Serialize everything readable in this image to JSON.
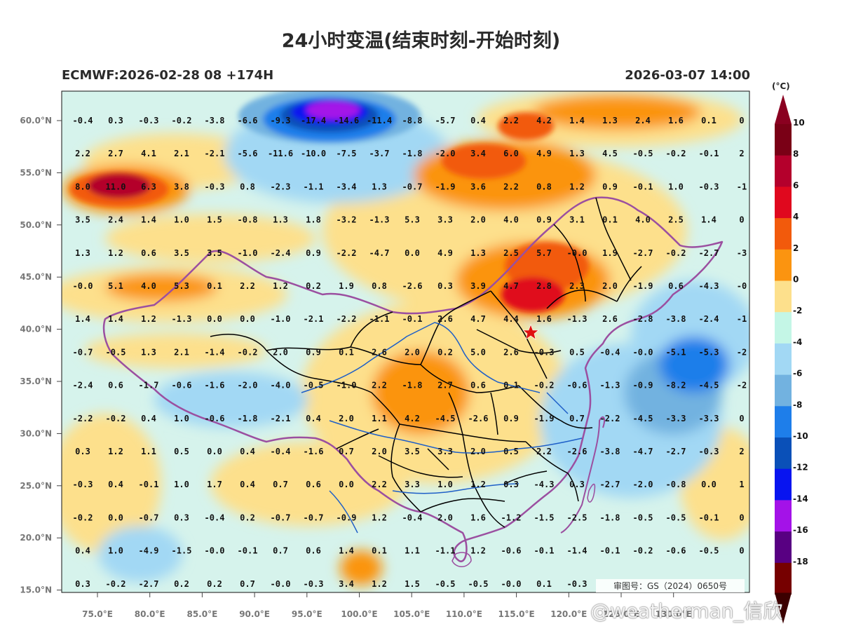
{
  "title": "24小时变温(结束时刻-开始时刻)",
  "model_run": "ECMWF:2026-02-28 08 +174H",
  "valid_time": "2026-03-07 14:00",
  "approval_number": "审图号：GS（2024）0650号",
  "watermark": "@weatherman_信欣",
  "lon_labels": [
    "75.0°E",
    "80.0°E",
    "85.0°E",
    "90.0°E",
    "95.0°E",
    "100.0°E",
    "105.0°E",
    "110.0°E",
    "115.0°E",
    "120.0°E",
    "125.0°E",
    "130.0°E"
  ],
  "lat_labels": [
    "60.0°N",
    "55.0°N",
    "50.0°N",
    "45.0°N",
    "40.0°N",
    "35.0°N",
    "30.0°N",
    "25.0°N",
    "20.0°N",
    "15.0°N"
  ],
  "colorbar": {
    "unit": "(°C)",
    "labels": [
      "10",
      "8",
      "6",
      "4",
      "2",
      "0",
      "-2",
      "-4",
      "-6",
      "-8",
      "-10",
      "-12",
      "-14",
      "-16",
      "-18"
    ],
    "colors": [
      "#7a0016",
      "#b4002c",
      "#e0081e",
      "#f25a0c",
      "#fb9410",
      "#fde08c",
      "#c4f6e6",
      "#a2d8f4",
      "#72b2e0",
      "#1e7eea",
      "#0a50b8",
      "#0814f0",
      "#a412e8",
      "#580082",
      "#760000"
    ],
    "top_arrow_color": "#8a0020",
    "bottom_arrow_color": "#3c0000"
  },
  "temperature_grid": [
    [
      "-0.4",
      "0.3",
      "-0.3",
      "-0.2",
      "-3.8",
      "-6.6",
      "-9.3",
      "-17.4",
      "-14.6",
      "-11.4",
      "-8.8",
      "-5.7",
      "0.4",
      "2.2",
      "4.2",
      "1.4",
      "1.3",
      "2.4",
      "1.6",
      "0.1",
      "0"
    ],
    [
      "2.2",
      "2.7",
      "4.1",
      "2.1",
      "-2.1",
      "-5.6",
      "-11.6",
      "-10.0",
      "-7.5",
      "-3.7",
      "-1.8",
      "-2.0",
      "3.4",
      "6.0",
      "4.9",
      "1.3",
      "4.5",
      "-0.5",
      "-0.2",
      "-0.1",
      "2"
    ],
    [
      "8.0",
      "11.0",
      "6.3",
      "3.8",
      "-0.3",
      "0.8",
      "-2.3",
      "-1.1",
      "-3.4",
      "1.3",
      "-0.7",
      "-1.9",
      "3.6",
      "2.2",
      "0.8",
      "1.2",
      "0.9",
      "-0.1",
      "1.0",
      "-0.3",
      "-1"
    ],
    [
      "3.5",
      "2.4",
      "1.4",
      "1.0",
      "1.5",
      "-0.8",
      "1.3",
      "1.8",
      "-3.2",
      "-1.3",
      "5.3",
      "3.3",
      "2.0",
      "4.0",
      "0.9",
      "3.1",
      "0.1",
      "4.0",
      "2.5",
      "1.4",
      "0"
    ],
    [
      "1.3",
      "1.2",
      "0.6",
      "3.5",
      "3.5",
      "-1.0",
      "-2.4",
      "0.9",
      "-2.2",
      "-4.7",
      "0.0",
      "4.9",
      "1.3",
      "2.5",
      "5.7",
      "-0.0",
      "1.9",
      "-2.7",
      "-0.2",
      "-2.7",
      "-3"
    ],
    [
      "-0.0",
      "5.1",
      "4.0",
      "5.3",
      "0.1",
      "2.2",
      "1.2",
      "0.2",
      "1.9",
      "0.8",
      "-2.6",
      "0.3",
      "3.9",
      "4.7",
      "2.8",
      "2.3",
      "2.0",
      "-1.9",
      "0.6",
      "-4.3",
      "-0"
    ],
    [
      "1.4",
      "1.4",
      "1.2",
      "-1.3",
      "0.0",
      "0.0",
      "-1.0",
      "-2.1",
      "-2.2",
      "-1.1",
      "-0.1",
      "2.6",
      "4.7",
      "4.4",
      "1.6",
      "-1.3",
      "2.6",
      "-2.8",
      "-3.8",
      "-2.4",
      "-1"
    ],
    [
      "-0.7",
      "-0.5",
      "1.3",
      "2.1",
      "-1.4",
      "-0.2",
      "2.0",
      "0.9",
      "0.1",
      "2.6",
      "2.0",
      "0.2",
      "5.0",
      "2.6",
      "-0.3",
      "0.5",
      "-0.4",
      "-0.0",
      "-5.1",
      "-5.3",
      "-2"
    ],
    [
      "-2.4",
      "0.6",
      "-1.7",
      "-0.6",
      "-1.6",
      "-2.0",
      "-4.0",
      "-0.5",
      "-1.0",
      "2.2",
      "-1.8",
      "2.7",
      "0.6",
      "0.1",
      "-0.2",
      "-0.6",
      "-1.3",
      "-0.9",
      "-8.2",
      "-4.5",
      "-2"
    ],
    [
      "-2.2",
      "-0.2",
      "0.4",
      "1.0",
      "-0.6",
      "-1.8",
      "-2.1",
      "0.4",
      "2.0",
      "1.1",
      "4.2",
      "-4.5",
      "-2.6",
      "0.9",
      "-1.9",
      "0.7",
      "-2.2",
      "-4.5",
      "-3.3",
      "-3.3",
      "0"
    ],
    [
      "0.3",
      "1.2",
      "1.1",
      "0.5",
      "0.0",
      "0.4",
      "-0.4",
      "-1.6",
      "0.7",
      "2.0",
      "3.5",
      "3.3",
      "2.0",
      "0.5",
      "2.2",
      "-2.6",
      "-3.8",
      "-4.7",
      "-2.7",
      "-0.3",
      "2"
    ],
    [
      "-0.3",
      "0.4",
      "-0.1",
      "1.0",
      "1.7",
      "0.4",
      "0.7",
      "0.6",
      "0.0",
      "2.2",
      "3.3",
      "1.0",
      "1.2",
      "0.3",
      "-4.3",
      "0.3",
      "-2.7",
      "-2.0",
      "-0.8",
      "0.0",
      "1"
    ],
    [
      "-0.2",
      "0.0",
      "-0.7",
      "0.3",
      "-0.4",
      "0.2",
      "-0.7",
      "-0.7",
      "-0.9",
      "1.2",
      "-0.4",
      "2.0",
      "1.6",
      "-1.2",
      "-1.5",
      "-2.5",
      "-1.8",
      "-0.5",
      "-0.5",
      "-0.1",
      "0"
    ],
    [
      "0.4",
      "1.0",
      "-4.9",
      "-1.5",
      "-0.0",
      "-0.1",
      "0.7",
      "0.6",
      "1.4",
      "0.1",
      "1.1",
      "-1.1",
      "1.2",
      "-0.6",
      "-0.1",
      "-1.4",
      "-0.1",
      "-0.2",
      "-0.6",
      "-0.5",
      "0"
    ],
    [
      "0.3",
      "-0.2",
      "-2.7",
      "0.2",
      "0.2",
      "0.7",
      "-0.0",
      "-0.3",
      "3.4",
      "1.2",
      "1.5",
      "-0.5",
      "-0.5",
      "-0.0",
      "0.1",
      "-0.3",
      "",
      "",
      "",
      "",
      ""
    ]
  ],
  "marker": {
    "name": "Beijing",
    "icon": "red-star-icon",
    "color": "#e01010"
  },
  "map_colors": {
    "background": "#d6f3ec",
    "warm_light": "#fde08c",
    "warm": "#fb9410",
    "warm_strong": "#f25a0c",
    "hot": "#e0081e",
    "very_hot": "#b4002c",
    "cool_light": "#a2d8f4",
    "cool": "#72b2e0",
    "cold": "#1e7eea",
    "cold_strong": "#0a50b8",
    "very_cold": "#a412e8",
    "border_national": "#9b4fa0",
    "border_province": "#000000",
    "rivers": "#1e5fc8"
  }
}
